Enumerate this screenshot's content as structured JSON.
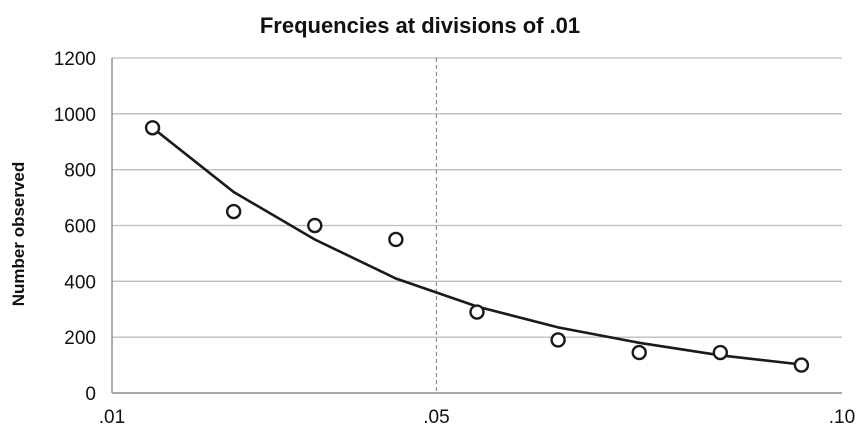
{
  "chart_data": {
    "type": "scatter",
    "title": "Frequencies at divisions of .01",
    "xlabel": "",
    "ylabel": "Number observed",
    "xlim": [
      0.01,
      0.1
    ],
    "ylim": [
      0,
      1200
    ],
    "x_ticks": [
      0.01,
      0.05,
      0.1
    ],
    "x_tick_labels": [
      ".01",
      ".05",
      ".10"
    ],
    "y_ticks": [
      0,
      200,
      400,
      600,
      800,
      1000,
      1200
    ],
    "y_tick_labels": [
      "0",
      "200",
      "400",
      "600",
      "800",
      "1000",
      "1200"
    ],
    "grid": "horizontal",
    "reference_line_x": 0.05,
    "series": [
      {
        "type": "scatter",
        "x": [
          0.015,
          0.025,
          0.035,
          0.045,
          0.055,
          0.065,
          0.075,
          0.085,
          0.095
        ],
        "values": [
          950,
          650,
          600,
          550,
          290,
          190,
          145,
          145,
          100
        ]
      },
      {
        "type": "line",
        "x": [
          0.015,
          0.025,
          0.035,
          0.045,
          0.055,
          0.065,
          0.075,
          0.085,
          0.095
        ],
        "values": [
          950,
          720,
          550,
          410,
          310,
          235,
          180,
          135,
          102
        ]
      }
    ]
  }
}
